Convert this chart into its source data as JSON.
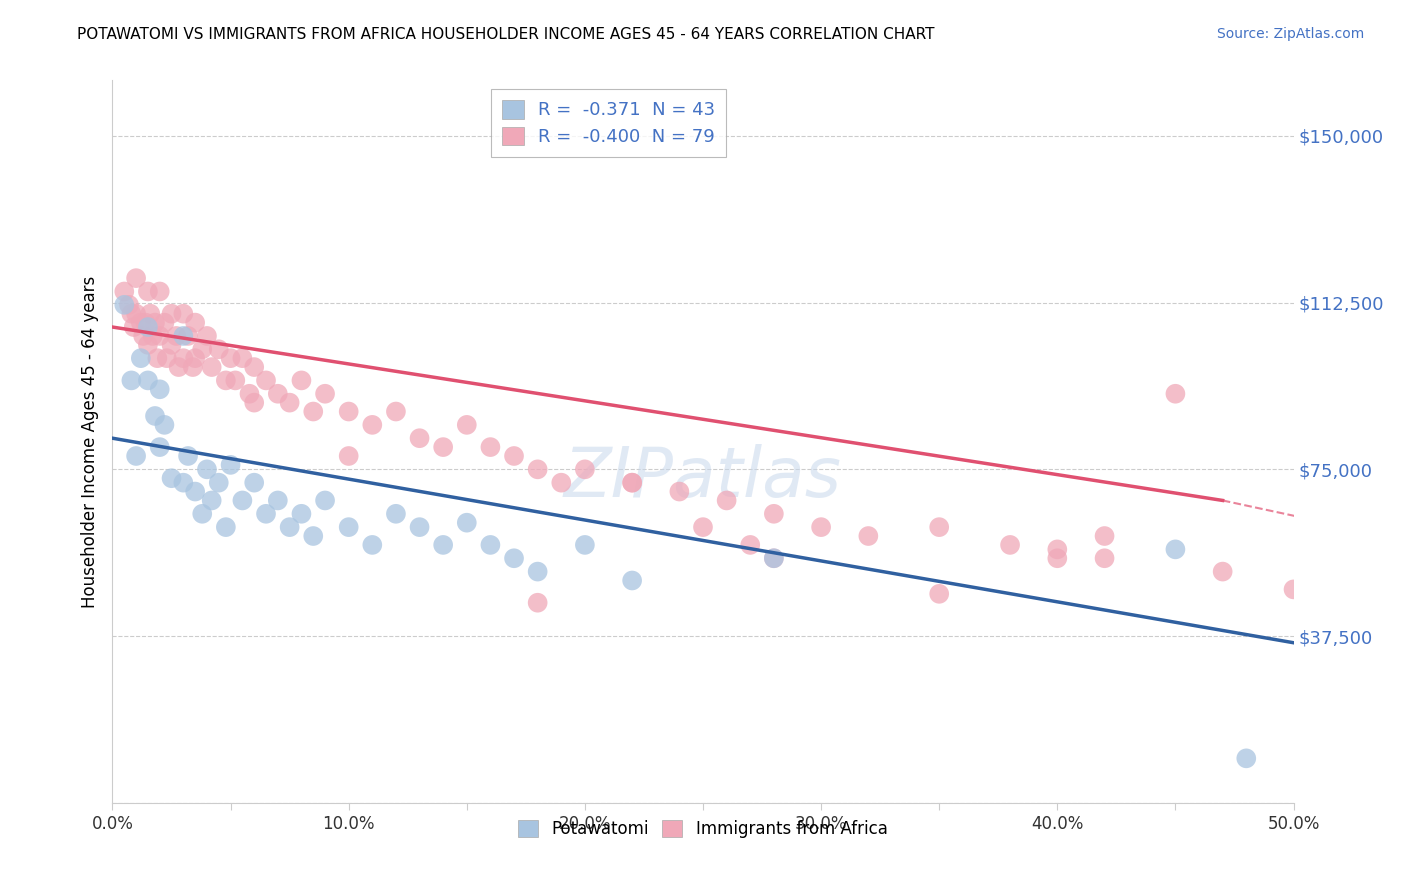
{
  "title": "POTAWATOMI VS IMMIGRANTS FROM AFRICA HOUSEHOLDER INCOME AGES 45 - 64 YEARS CORRELATION CHART",
  "source": "Source: ZipAtlas.com",
  "ylabel": "Householder Income Ages 45 - 64 years",
  "xlim": [
    0.0,
    0.5
  ],
  "ylim": [
    0,
    162500
  ],
  "yticks": [
    0,
    37500,
    75000,
    112500,
    150000
  ],
  "ytick_labels": [
    "",
    "$37,500",
    "$75,000",
    "$112,500",
    "$150,000"
  ],
  "xtick_labels": [
    "0.0%",
    "",
    "10.0%",
    "",
    "20.0%",
    "",
    "30.0%",
    "",
    "40.0%",
    "",
    "50.0%"
  ],
  "xticks": [
    0.0,
    0.05,
    0.1,
    0.15,
    0.2,
    0.25,
    0.3,
    0.35,
    0.4,
    0.45,
    0.5
  ],
  "legend_entry1": "R =  -0.371  N = 43",
  "legend_entry2": "R =  -0.400  N = 79",
  "legend_labels": [
    "Potawatomi",
    "Immigrants from Africa"
  ],
  "blue_color": "#3060a0",
  "pink_color": "#e05070",
  "blue_scatter_color": "#a8c4e0",
  "pink_scatter_color": "#f0a8b8",
  "watermark": "ZIPatlas",
  "blue_line": [
    0.0,
    82000,
    0.5,
    36000
  ],
  "pink_line_solid": [
    0.0,
    107000,
    0.47,
    68000
  ],
  "pink_line_dashed": [
    0.47,
    68000,
    0.54,
    60000
  ],
  "potawatomi_x": [
    0.005,
    0.008,
    0.01,
    0.012,
    0.015,
    0.015,
    0.018,
    0.02,
    0.02,
    0.022,
    0.025,
    0.03,
    0.03,
    0.032,
    0.035,
    0.038,
    0.04,
    0.042,
    0.045,
    0.048,
    0.05,
    0.055,
    0.06,
    0.065,
    0.07,
    0.075,
    0.08,
    0.085,
    0.09,
    0.1,
    0.11,
    0.12,
    0.13,
    0.14,
    0.15,
    0.16,
    0.17,
    0.18,
    0.2,
    0.22,
    0.28,
    0.45,
    0.48
  ],
  "potawatomi_y": [
    112000,
    95000,
    78000,
    100000,
    107000,
    95000,
    87000,
    93000,
    80000,
    85000,
    73000,
    105000,
    72000,
    78000,
    70000,
    65000,
    75000,
    68000,
    72000,
    62000,
    76000,
    68000,
    72000,
    65000,
    68000,
    62000,
    65000,
    60000,
    68000,
    62000,
    58000,
    65000,
    62000,
    58000,
    63000,
    58000,
    55000,
    52000,
    58000,
    50000,
    55000,
    57000,
    10000
  ],
  "africa_x": [
    0.005,
    0.007,
    0.008,
    0.009,
    0.01,
    0.01,
    0.012,
    0.013,
    0.014,
    0.015,
    0.015,
    0.016,
    0.017,
    0.018,
    0.019,
    0.02,
    0.02,
    0.022,
    0.023,
    0.025,
    0.025,
    0.027,
    0.028,
    0.03,
    0.03,
    0.032,
    0.034,
    0.035,
    0.035,
    0.038,
    0.04,
    0.042,
    0.045,
    0.048,
    0.05,
    0.052,
    0.055,
    0.058,
    0.06,
    0.065,
    0.07,
    0.075,
    0.08,
    0.085,
    0.09,
    0.1,
    0.11,
    0.12,
    0.13,
    0.14,
    0.15,
    0.16,
    0.17,
    0.18,
    0.19,
    0.2,
    0.22,
    0.24,
    0.26,
    0.28,
    0.3,
    0.32,
    0.35,
    0.38,
    0.4,
    0.42,
    0.45,
    0.47,
    0.5,
    0.28,
    0.18,
    0.22,
    0.27,
    0.35,
    0.4,
    0.42,
    0.25,
    0.1,
    0.06
  ],
  "africa_y": [
    115000,
    112000,
    110000,
    107000,
    118000,
    110000,
    108000,
    105000,
    108000,
    115000,
    103000,
    110000,
    105000,
    108000,
    100000,
    115000,
    105000,
    108000,
    100000,
    110000,
    103000,
    105000,
    98000,
    110000,
    100000,
    105000,
    98000,
    108000,
    100000,
    102000,
    105000,
    98000,
    102000,
    95000,
    100000,
    95000,
    100000,
    92000,
    98000,
    95000,
    92000,
    90000,
    95000,
    88000,
    92000,
    88000,
    85000,
    88000,
    82000,
    80000,
    85000,
    80000,
    78000,
    75000,
    72000,
    75000,
    72000,
    70000,
    68000,
    65000,
    62000,
    60000,
    62000,
    58000,
    55000,
    60000,
    92000,
    52000,
    48000,
    55000,
    45000,
    72000,
    58000,
    47000,
    57000,
    55000,
    62000,
    78000,
    90000
  ]
}
